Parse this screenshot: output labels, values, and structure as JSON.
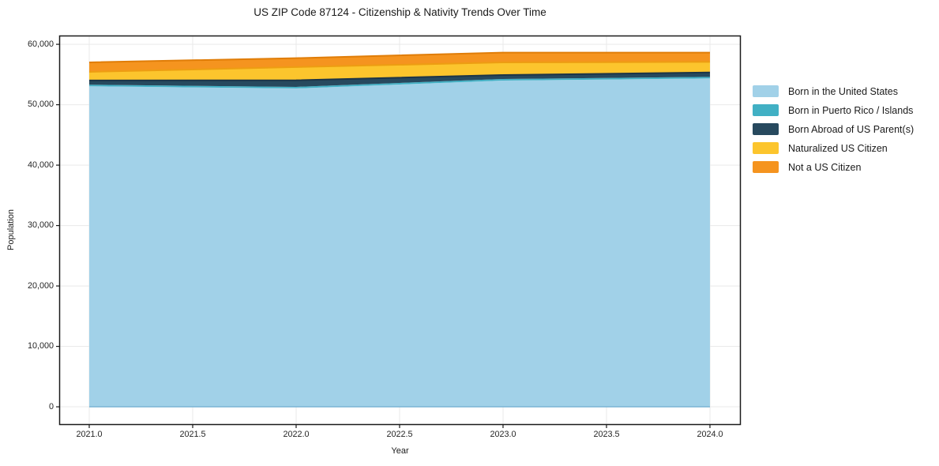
{
  "chart_data": {
    "type": "area",
    "stacked": true,
    "title": "US ZIP Code 87124 - Citizenship & Nativity Trends Over Time",
    "xlabel": "Year",
    "ylabel": "Population",
    "x": [
      2021,
      2022,
      2023,
      2024
    ],
    "series": [
      {
        "name": "Born in the United States",
        "color": "#a1d1e8",
        "edge": "#7ab4d4",
        "values": [
          53050,
          52700,
          54000,
          54350
        ]
      },
      {
        "name": "Born in Puerto Rico / Islands",
        "color": "#41b0c4",
        "edge": "#2d95a8",
        "values": [
          260,
          260,
          260,
          260
        ]
      },
      {
        "name": "Born Abroad of US Parent(s)",
        "color": "#27495e",
        "edge": "#1d3547",
        "values": [
          700,
          1080,
          650,
          730
        ]
      },
      {
        "name": "Naturalized US Citizen",
        "color": "#fcc52d",
        "edge": "#ed9d12",
        "values": [
          1430,
          2190,
          2090,
          1750
        ]
      },
      {
        "name": "Not a US Citizen",
        "color": "#f5941f",
        "edge": "#e07d08",
        "values": [
          1570,
          1480,
          1630,
          1540
        ]
      }
    ],
    "xlim": [
      2020.855,
      2024.149
    ],
    "ylim": [
      -3000,
      61450
    ],
    "x_ticks": [
      "2021.0",
      "2021.5",
      "2022.0",
      "2022.5",
      "2023.0",
      "2023.5",
      "2024.0"
    ],
    "x_tick_values": [
      2021,
      2021.5,
      2022,
      2022.5,
      2023,
      2023.5,
      2024
    ],
    "y_ticks": [
      "0",
      "10,000",
      "20,000",
      "30,000",
      "40,000",
      "50,000",
      "60,000"
    ],
    "y_tick_values": [
      0,
      10000,
      20000,
      30000,
      40000,
      50000,
      60000
    ],
    "grid": true,
    "grid_color": "#e9e9e9",
    "frame_color": "#1a1a1a",
    "legend_position": "right"
  }
}
